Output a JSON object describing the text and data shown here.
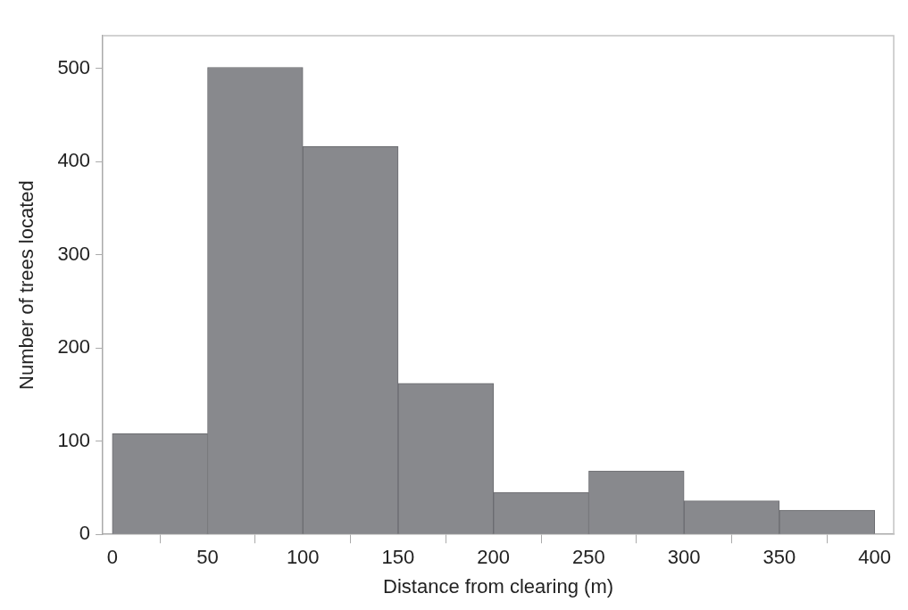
{
  "chart_data": {
    "type": "histogram",
    "xlabel": "Distance from clearing (m)",
    "ylabel": "Number of trees located",
    "bins": [
      0,
      50,
      100,
      150,
      200,
      250,
      300,
      350,
      400
    ],
    "values": [
      108,
      501,
      416,
      162,
      45,
      68,
      36,
      26
    ],
    "color": "#88898d",
    "xlim": [
      -5,
      410
    ],
    "xticks": [
      0,
      50,
      100,
      150,
      200,
      250,
      300,
      350,
      400
    ],
    "ylim": [
      0,
      535
    ],
    "yticks": [
      0,
      100,
      200,
      300,
      400,
      500
    ],
    "grid": false
  }
}
